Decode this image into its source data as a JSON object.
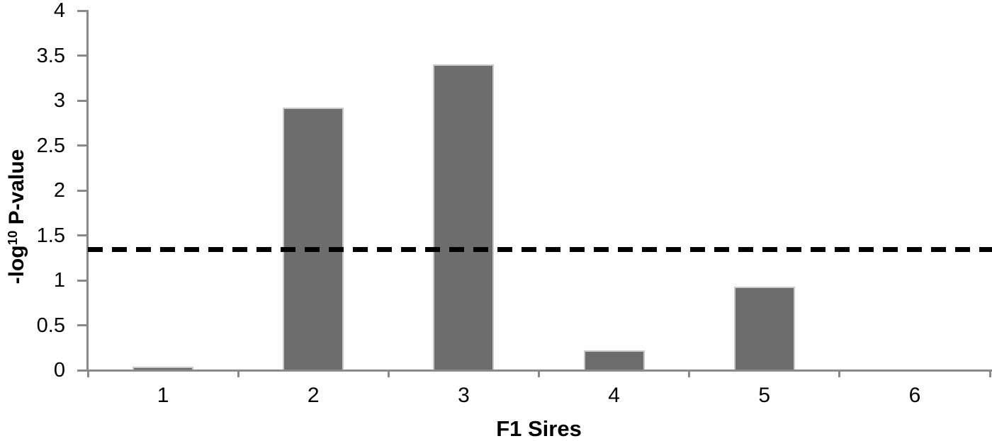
{
  "chart_data": {
    "type": "bar",
    "title": "",
    "xlabel": "F1 Sires",
    "ylabel_text": "-log10 P-value",
    "ylabel_parts": {
      "prefix": "-log",
      "superscript": "10",
      "suffix": " P-value"
    },
    "categories": [
      "1",
      "2",
      "3",
      "4",
      "5",
      "6"
    ],
    "values": [
      0.04,
      2.92,
      3.4,
      0.22,
      0.93,
      0
    ],
    "ylim": [
      0,
      4
    ],
    "ytick_labels": [
      "0",
      "0.5",
      "1",
      "1.5",
      "2",
      "2.5",
      "3",
      "3.5",
      "4"
    ],
    "grid": false,
    "legend": null,
    "threshold_line": {
      "value": 1.34,
      "style": "dashed",
      "color": "#000000"
    },
    "colors": {
      "bar_fill": "#6d6d6d",
      "bar_border": "#c9c9c9",
      "axis": "#8a8a8a",
      "text": "#000000",
      "background": "#ffffff"
    }
  }
}
